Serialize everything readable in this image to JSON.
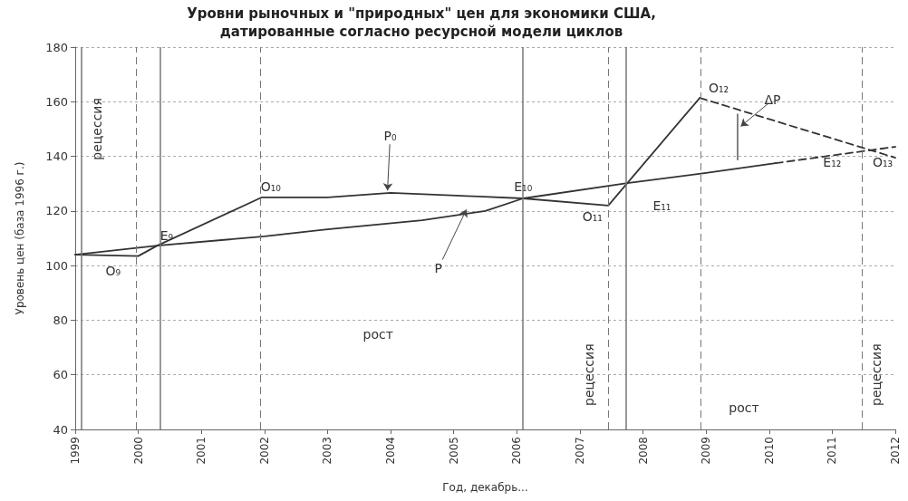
{
  "chart_data": {
    "type": "line",
    "title": "Уровни рыночных и \"природных\" цен для экономики США,\nдатированные согласно ресурсной модели циклов",
    "xlabel": "Год, декабрь...",
    "ylabel": "Уровень цен (база 1996 г.)",
    "xlim": [
      1999,
      2012
    ],
    "xticks": [
      1999,
      2000,
      2001,
      2002,
      2003,
      2004,
      2005,
      2006,
      2007,
      2008,
      2009,
      2010,
      2011,
      2012
    ],
    "ylim": [
      40,
      180
    ],
    "yticks": [
      40,
      60,
      80,
      100,
      120,
      140,
      160,
      180
    ],
    "grid": "y",
    "marker": "none",
    "series": [
      {
        "color": "#333333",
        "line_style": "solid",
        "x": [
          1999,
          2000,
          2000.3,
          2001.96,
          2003,
          2004,
          2005.4,
          2006.1,
          2007.45,
          2008.9
        ],
        "values": [
          104,
          103.5,
          107.3,
          125,
          125,
          126.6,
          125.3,
          124.6,
          122,
          161.4
        ]
      },
      {
        "color": "#333333",
        "line_style": "dashed",
        "x": [
          2008.9,
          2012
        ],
        "values": [
          161.4,
          139.5
        ]
      },
      {
        "color": "#333333",
        "line_style": "solid",
        "x": [
          1999,
          2000.3,
          2002,
          2003,
          2004.5,
          2005.5,
          2006.1,
          2007.75,
          2009,
          2010.1
        ],
        "values": [
          104,
          107.3,
          110.7,
          113.3,
          116.6,
          120,
          124.6,
          130.2,
          133.9,
          137.5
        ]
      },
      {
        "color": "#333333",
        "line_style": "dashed",
        "x": [
          2010.1,
          2012
        ],
        "values": [
          137.5,
          143.5
        ]
      },
      {
        "color": "#777777",
        "line_style": "solid",
        "x": [
          2009.5,
          2009.5
        ],
        "values": [
          155.4,
          138.8
        ]
      }
    ],
    "ref_lines": [
      {
        "axis": "x",
        "value": 1999.1,
        "color": "#777777",
        "line_style": "solid"
      },
      {
        "axis": "x",
        "value": 2000.35,
        "color": "#777777",
        "line_style": "solid"
      },
      {
        "axis": "x",
        "value": 2006.09,
        "color": "#777777",
        "line_style": "solid"
      },
      {
        "axis": "x",
        "value": 2007.73,
        "color": "#777777",
        "line_style": "solid"
      },
      {
        "axis": "x",
        "value": 1999.96,
        "color": "#777777",
        "line_style": "dashed"
      },
      {
        "axis": "x",
        "value": 2001.94,
        "color": "#777777",
        "line_style": "dashed"
      },
      {
        "axis": "x",
        "value": 2007.45,
        "color": "#777777",
        "line_style": "dashed"
      },
      {
        "axis": "x",
        "value": 2008.91,
        "color": "#777777",
        "line_style": "dashed"
      },
      {
        "axis": "x",
        "value": 2011.47,
        "color": "#777777",
        "line_style": "dashed"
      }
    ],
    "annotations": [
      "O₉",
      "E₉",
      "O₁₀",
      {
        "text": "P₀",
        "x": 2003.95,
        "y": 127.5
      },
      {
        "text": "P",
        "x": 2005.2,
        "y": 120.5
      },
      "E₁₀",
      "O₁₁",
      "E₁₁",
      "O₁₂",
      {
        "text": "ΔP",
        "x": 2009.55,
        "y": 151
      },
      "E₁₂",
      "O₁₃",
      "рецессия",
      "рецессия",
      "рецессия",
      "рост",
      "рост"
    ]
  }
}
